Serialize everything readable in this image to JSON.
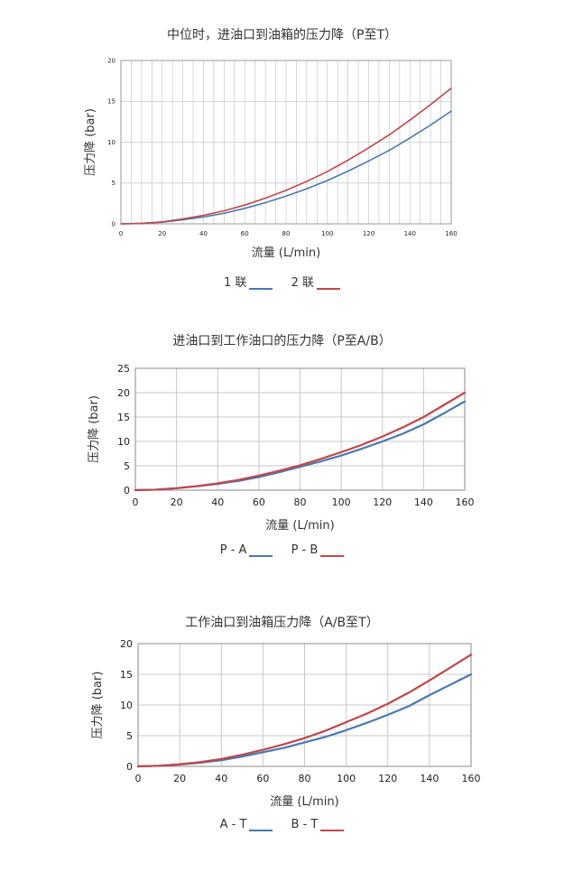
{
  "chart_data": [
    {
      "type": "line",
      "title": "中位时，进油口到油箱的压力降（P至T）",
      "xlabel": "流量 (L/min)",
      "ylabel": "压力降 (bar)",
      "xlim": [
        0,
        160
      ],
      "ylim": [
        0,
        20
      ],
      "xticks": [
        0,
        20,
        40,
        60,
        80,
        100,
        120,
        140,
        160
      ],
      "yticks": [
        0,
        5,
        10,
        15,
        20
      ],
      "grid": "minor",
      "legend_position": "bottom",
      "series": [
        {
          "name": "1 联",
          "color": "#4a78b0",
          "x": [
            0,
            10,
            20,
            30,
            40,
            50,
            60,
            70,
            80,
            90,
            100,
            110,
            120,
            130,
            140,
            150,
            160
          ],
          "y": [
            0,
            0.05,
            0.2,
            0.5,
            0.85,
            1.3,
            1.9,
            2.6,
            3.4,
            4.3,
            5.3,
            6.45,
            7.7,
            9.0,
            10.5,
            12.1,
            13.8
          ]
        },
        {
          "name": "2 联",
          "color": "#c0474b",
          "x": [
            0,
            10,
            20,
            30,
            40,
            50,
            60,
            70,
            80,
            90,
            100,
            110,
            120,
            130,
            140,
            150,
            160
          ],
          "y": [
            0,
            0.06,
            0.25,
            0.6,
            1.05,
            1.6,
            2.3,
            3.15,
            4.1,
            5.2,
            6.4,
            7.8,
            9.3,
            10.9,
            12.7,
            14.6,
            16.6
          ]
        }
      ]
    },
    {
      "type": "line",
      "title": "进油口到工作油口的压力降（P至A/B）",
      "xlabel": "流量 (L/min)",
      "ylabel": "压力降 (bar)",
      "xlim": [
        0,
        160
      ],
      "ylim": [
        0,
        25
      ],
      "xticks": [
        0,
        20,
        40,
        60,
        80,
        100,
        120,
        140,
        160
      ],
      "yticks": [
        0,
        5,
        10,
        15,
        20,
        25
      ],
      "grid": "major",
      "legend_position": "bottom",
      "series": [
        {
          "name": "P - A",
          "color": "#4a78b0",
          "x": [
            0,
            10,
            20,
            30,
            40,
            50,
            60,
            70,
            80,
            90,
            100,
            110,
            120,
            130,
            140,
            150,
            160
          ],
          "y": [
            0,
            0.1,
            0.4,
            0.8,
            1.3,
            1.9,
            2.7,
            3.7,
            4.8,
            5.9,
            7.1,
            8.5,
            10.0,
            11.6,
            13.5,
            15.8,
            18.2
          ]
        },
        {
          "name": "P - B",
          "color": "#c0474b",
          "x": [
            0,
            10,
            20,
            30,
            40,
            50,
            60,
            70,
            80,
            90,
            100,
            110,
            120,
            130,
            140,
            150,
            160
          ],
          "y": [
            0,
            0.1,
            0.4,
            0.85,
            1.4,
            2.1,
            3.0,
            4.0,
            5.1,
            6.4,
            7.8,
            9.3,
            11.0,
            12.9,
            15.0,
            17.5,
            20.0
          ]
        }
      ]
    },
    {
      "type": "line",
      "title": "工作油口到油箱压力降（A/B至T）",
      "xlabel": "流量 (L/min)",
      "ylabel": "压力降 (bar)",
      "xlim": [
        0,
        160
      ],
      "ylim": [
        0,
        20
      ],
      "xticks": [
        0,
        20,
        40,
        60,
        80,
        100,
        120,
        140,
        160
      ],
      "yticks": [
        0,
        5,
        10,
        15,
        20
      ],
      "grid": "major",
      "legend_position": "bottom",
      "series": [
        {
          "name": "A - T",
          "color": "#4a78b0",
          "x": [
            0,
            10,
            20,
            30,
            40,
            50,
            60,
            70,
            80,
            90,
            100,
            110,
            120,
            130,
            140,
            150,
            160
          ],
          "y": [
            0,
            0.1,
            0.3,
            0.6,
            1.0,
            1.6,
            2.3,
            3.0,
            3.9,
            4.8,
            5.9,
            7.1,
            8.4,
            9.8,
            11.6,
            13.3,
            15.0
          ]
        },
        {
          "name": "B - T",
          "color": "#c0474b",
          "x": [
            0,
            10,
            20,
            30,
            40,
            50,
            60,
            70,
            80,
            90,
            100,
            110,
            120,
            130,
            140,
            150,
            160
          ],
          "y": [
            0,
            0.1,
            0.35,
            0.7,
            1.2,
            1.9,
            2.7,
            3.6,
            4.6,
            5.8,
            7.2,
            8.6,
            10.2,
            12.0,
            14.0,
            16.1,
            18.2
          ]
        }
      ]
    }
  ]
}
